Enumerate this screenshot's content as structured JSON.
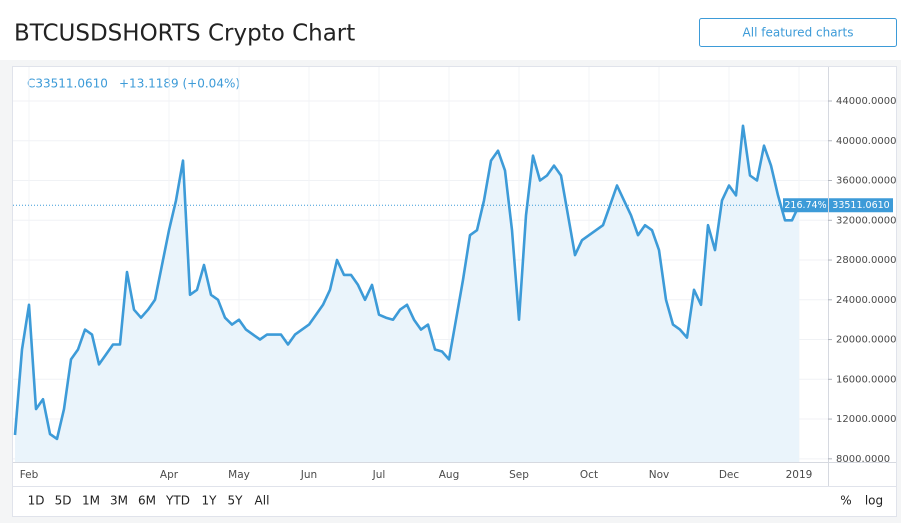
{
  "chart_data": {
    "type": "line",
    "title": "BTCUSDSHORTS Crypto Chart",
    "header_button": "All featured charts",
    "close_label": "C33511.0610",
    "change_label": "+13.1189 (+0.04%)",
    "last_change_label": "216.74%",
    "last_price_label": "33511.0610",
    "range_buttons": [
      "1D",
      "5D",
      "1M",
      "3M",
      "6M",
      "YTD",
      "1Y",
      "5Y",
      "All"
    ],
    "scale_buttons": [
      "%",
      "log"
    ],
    "color": "#3d9bd8",
    "grid": true,
    "categories": [
      null,
      null,
      "Feb",
      null,
      null,
      null,
      null,
      null,
      null,
      null,
      null,
      null,
      null,
      null,
      null,
      null,
      null,
      null,
      null,
      null,
      null,
      null,
      "Apr",
      null,
      null,
      null,
      null,
      null,
      null,
      null,
      null,
      null,
      "May",
      null,
      null,
      null,
      null,
      null,
      null,
      null,
      null,
      null,
      "Jun",
      null,
      null,
      null,
      null,
      null,
      null,
      null,
      null,
      null,
      "Jul",
      null,
      null,
      null,
      null,
      null,
      null,
      null,
      null,
      null,
      "Aug",
      null,
      null,
      null,
      null,
      null,
      null,
      null,
      null,
      null,
      "Sep",
      null,
      null,
      null,
      null,
      null,
      null,
      null,
      null,
      null,
      "Oct",
      null,
      null,
      null,
      null,
      null,
      null,
      null,
      null,
      null,
      "Nov",
      null,
      null,
      null,
      null,
      null,
      null,
      null,
      null,
      null,
      "Dec",
      null,
      null,
      null,
      null,
      null,
      null,
      null,
      null,
      null,
      "2019"
    ],
    "values": [
      10400,
      19000,
      23500,
      13000,
      14000,
      10500,
      10000,
      13000,
      18000,
      19000,
      21000,
      20500,
      17500,
      18500,
      19500,
      19500,
      26800,
      23000,
      22200,
      23000,
      24000,
      27500,
      31000,
      34000,
      38000,
      24500,
      25000,
      27500,
      24500,
      24000,
      22200,
      21500,
      22000,
      21000,
      20500,
      20000,
      20500,
      20500,
      20500,
      19500,
      20500,
      21000,
      21500,
      22500,
      23500,
      25000,
      28000,
      26500,
      26500,
      25500,
      24000,
      25500,
      22500,
      22200,
      22000,
      23000,
      23500,
      22000,
      21000,
      21500,
      19000,
      18800,
      18000,
      22000,
      26000,
      30500,
      31000,
      34000,
      38000,
      39000,
      37000,
      31000,
      22000,
      32500,
      38500,
      36000,
      36500,
      37500,
      36500,
      32500,
      28500,
      30000,
      30500,
      31000,
      31500,
      33500,
      35500,
      34000,
      32500,
      30500,
      31500,
      31000,
      29000,
      24000,
      21500,
      21000,
      20200,
      25000,
      23500,
      31500,
      29000,
      34000,
      35500,
      34500,
      41500,
      36500,
      36000,
      39500,
      37500,
      34500,
      32000,
      32000,
      33511.061
    ],
    "ylim": [
      7680,
      47320
    ],
    "yticks": [
      {
        "value": 8000,
        "label": "8000.0000"
      },
      {
        "value": 12000,
        "label": "12000.0000"
      },
      {
        "value": 16000,
        "label": "16000.0000"
      },
      {
        "value": 20000,
        "label": "20000.0000"
      },
      {
        "value": 24000,
        "label": "24000.0000"
      },
      {
        "value": 28000,
        "label": "28000.0000"
      },
      {
        "value": 32000,
        "label": "32000.0000"
      },
      {
        "value": 36000,
        "label": "36000.0000"
      },
      {
        "value": 40000,
        "label": "40000.0000"
      },
      {
        "value": 44000,
        "label": "44000.0000"
      }
    ]
  }
}
